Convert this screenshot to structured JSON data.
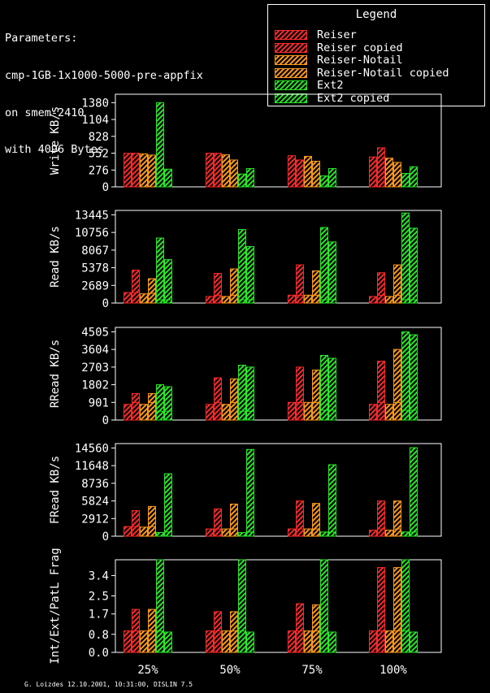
{
  "parameters": {
    "lines": [
      "Parameters:",
      "cmp-1GB-1x1000-5000-pre-appfix",
      "on smem-2410",
      "with 4096 Bytes"
    ]
  },
  "legend": {
    "title": "Legend",
    "items": [
      {
        "label": "Reiser",
        "color": "#ff2a2a"
      },
      {
        "label": "Reiser copied",
        "color": "#ff2a2a"
      },
      {
        "label": "Reiser-Notail",
        "color": "#ff9a1a"
      },
      {
        "label": "Reiser-Notail copied",
        "color": "#ff9a1a"
      },
      {
        "label": "Ext2",
        "color": "#28e828"
      },
      {
        "label": "Ext2 copied",
        "color": "#28e828"
      }
    ]
  },
  "footer": "G. Loizdes 12.10.2001, 10:31:00, DISLIN 7.5",
  "chart_data": [
    {
      "type": "bar",
      "ylabel": "Write KB/s",
      "ylim": [
        0,
        1518
      ],
      "yticks": [
        0,
        276,
        552,
        828,
        1104,
        1380
      ],
      "categories": [
        "25%",
        "50%",
        "75%",
        "100%"
      ],
      "series": [
        {
          "name": "Reiser",
          "color": "#ff2a2a",
          "values": [
            [
              550
            ],
            [
              550
            ],
            [
              510
            ],
            [
              490
            ]
          ]
        },
        {
          "name": "Reiser copied",
          "color": "#ff2a2a",
          "values": [
            [
              550
            ],
            [
              550
            ],
            [
              440
            ],
            [
              640
            ]
          ]
        },
        {
          "name": "Reiser-Notail",
          "color": "#ff9a1a",
          "values": [
            [
              540
            ],
            [
              525
            ],
            [
              500
            ],
            [
              470
            ]
          ]
        },
        {
          "name": "Reiser-Notail copied",
          "color": "#ff9a1a",
          "values": [
            [
              520
            ],
            [
              440
            ],
            [
              420
            ],
            [
              400
            ]
          ]
        },
        {
          "name": "Ext2",
          "color": "#28e828",
          "values": [
            [
              1380
            ],
            [
              210
            ],
            [
              180
            ],
            [
              220
            ]
          ]
        },
        {
          "name": "Ext2 copied",
          "color": "#28e828",
          "values": [
            [
              290
            ],
            [
              300
            ],
            [
              300
            ],
            [
              330
            ]
          ]
        }
      ]
    },
    {
      "type": "bar",
      "ylabel": "Read KB/s",
      "ylim": [
        0,
        14115
      ],
      "yticks": [
        0,
        2689,
        5378,
        8067,
        10756,
        13445
      ],
      "categories": [
        "25%",
        "50%",
        "75%",
        "100%"
      ],
      "series": [
        {
          "name": "Reiser",
          "color": "#ff2a2a",
          "values": [
            [
              1600
            ],
            [
              1000
            ],
            [
              1200
            ],
            [
              1000
            ]
          ]
        },
        {
          "name": "Reiser copied",
          "color": "#ff2a2a",
          "values": [
            [
              1600,
              5000
            ],
            [
              1200,
              4500
            ],
            [
              1200,
              5800
            ],
            [
              1200,
              4600
            ]
          ]
        },
        {
          "name": "Reiser-Notail",
          "color": "#ff9a1a",
          "values": [
            [
              1400
            ],
            [
              1000
            ],
            [
              1200
            ],
            [
              1000
            ]
          ]
        },
        {
          "name": "Reiser-Notail copied",
          "color": "#ff9a1a",
          "values": [
            [
              1500,
              3700
            ],
            [
              1200,
              5200
            ],
            [
              1200,
              4900
            ],
            [
              1200,
              5800
            ]
          ]
        },
        {
          "name": "Ext2",
          "color": "#28e828",
          "values": [
            [
              500,
              9900
            ],
            [
              500,
              11200
            ],
            [
              500,
              11500
            ],
            [
              500,
              13700
            ]
          ]
        },
        {
          "name": "Ext2 copied",
          "color": "#28e828",
          "values": [
            [
              500,
              6600
            ],
            [
              500,
              8600
            ],
            [
              500,
              9300
            ],
            [
              500,
              11400
            ]
          ]
        }
      ]
    },
    {
      "type": "bar",
      "ylabel": "RRead KB/s",
      "ylim": [
        0,
        4730
      ],
      "yticks": [
        0,
        901,
        1802,
        2703,
        3604,
        4505
      ],
      "categories": [
        "25%",
        "50%",
        "75%",
        "100%"
      ],
      "series": [
        {
          "name": "Reiser",
          "color": "#ff2a2a",
          "values": [
            [
              800
            ],
            [
              800
            ],
            [
              900
            ],
            [
              800
            ]
          ]
        },
        {
          "name": "Reiser copied",
          "color": "#ff2a2a",
          "values": [
            [
              900,
              1350
            ],
            [
              900,
              2150
            ],
            [
              900,
              2700
            ],
            [
              900,
              3000
            ]
          ]
        },
        {
          "name": "Reiser-Notail",
          "color": "#ff9a1a",
          "values": [
            [
              800
            ],
            [
              800
            ],
            [
              900
            ],
            [
              800
            ]
          ]
        },
        {
          "name": "Reiser-Notail copied",
          "color": "#ff9a1a",
          "values": [
            [
              900,
              1350
            ],
            [
              900,
              2100
            ],
            [
              900,
              2550
            ],
            [
              900,
              3600
            ]
          ]
        },
        {
          "name": "Ext2",
          "color": "#28e828",
          "values": [
            [
              450,
              1800
            ],
            [
              450,
              2800
            ],
            [
              500,
              3300
            ],
            [
              500,
              4500
            ]
          ]
        },
        {
          "name": "Ext2 copied",
          "color": "#28e828",
          "values": [
            [
              450,
              1700
            ],
            [
              450,
              2700
            ],
            [
              500,
              3150
            ],
            [
              500,
              4350
            ]
          ]
        }
      ]
    },
    {
      "type": "bar",
      "ylabel": "FRead KB/s",
      "ylim": [
        0,
        15288
      ],
      "yticks": [
        0,
        2912,
        5824,
        8736,
        11648,
        14560
      ],
      "categories": [
        "25%",
        "50%",
        "75%",
        "100%"
      ],
      "series": [
        {
          "name": "Reiser",
          "color": "#ff2a2a",
          "values": [
            [
              1600
            ],
            [
              1200
            ],
            [
              1200
            ],
            [
              1000
            ]
          ]
        },
        {
          "name": "Reiser copied",
          "color": "#ff2a2a",
          "values": [
            [
              1600,
              4200
            ],
            [
              1200,
              4500
            ],
            [
              1200,
              5800
            ],
            [
              1200,
              5800
            ]
          ]
        },
        {
          "name": "Reiser-Notail",
          "color": "#ff9a1a",
          "values": [
            [
              1500
            ],
            [
              1200
            ],
            [
              1200
            ],
            [
              1000
            ]
          ]
        },
        {
          "name": "Reiser-Notail copied",
          "color": "#ff9a1a",
          "values": [
            [
              1600,
              4900
            ],
            [
              1200,
              5300
            ],
            [
              1200,
              5400
            ],
            [
              1200,
              5800
            ]
          ]
        },
        {
          "name": "Ext2",
          "color": "#28e828",
          "values": [
            [
              600
            ],
            [
              600
            ],
            [
              700
            ],
            [
              700
            ]
          ]
        },
        {
          "name": "Ext2 copied",
          "color": "#28e828",
          "values": [
            [
              700,
              10300
            ],
            [
              700,
              14300
            ],
            [
              700,
              11800
            ],
            [
              700,
              14600
            ]
          ]
        }
      ]
    },
    {
      "type": "bar",
      "ylabel": "Int/Ext/PatL Frag",
      "ylim": [
        0,
        4.1
      ],
      "yticks": [
        0.0,
        0.8,
        1.7,
        2.5,
        3.4
      ],
      "ytick_labels": [
        "0.0",
        "0.8",
        "1.7",
        "2.5",
        "3.4"
      ],
      "xlabels": [
        "25%",
        "50%",
        "75%",
        "100%"
      ],
      "categories": [
        "25%",
        "50%",
        "75%",
        "100%"
      ],
      "series": [
        {
          "name": "Reiser",
          "color": "#ff2a2a",
          "values": [
            [
              0.95
            ],
            [
              0.95
            ],
            [
              0.95
            ],
            [
              0.95
            ]
          ]
        },
        {
          "name": "Reiser copied",
          "color": "#ff2a2a",
          "values": [
            [
              0.95,
              1.9
            ],
            [
              0.95,
              1.8
            ],
            [
              0.95,
              2.15
            ],
            [
              0.95,
              3.75
            ]
          ]
        },
        {
          "name": "Reiser-Notail",
          "color": "#ff9a1a",
          "values": [
            [
              0.95
            ],
            [
              0.95
            ],
            [
              0.95
            ],
            [
              0.95
            ]
          ]
        },
        {
          "name": "Reiser-Notail copied",
          "color": "#ff9a1a",
          "values": [
            [
              0.95,
              1.9
            ],
            [
              0.95,
              1.8
            ],
            [
              0.95,
              2.1
            ],
            [
              0.95,
              3.75
            ]
          ]
        },
        {
          "name": "Ext2",
          "color": "#28e828",
          "values": [
            [
              0.95,
              4.1
            ],
            [
              0.95,
              4.1
            ],
            [
              0.95,
              4.1
            ],
            [
              0.95,
              4.1
            ]
          ]
        },
        {
          "name": "Ext2 copied",
          "color": "#28e828",
          "values": [
            [
              0.9
            ],
            [
              0.9
            ],
            [
              0.9
            ],
            [
              0.9
            ]
          ]
        }
      ]
    }
  ]
}
